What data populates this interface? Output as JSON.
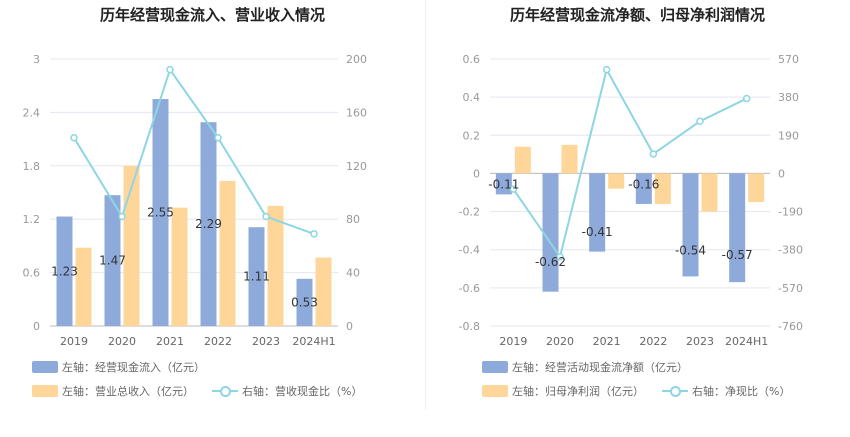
{
  "colors": {
    "bar1": "#8eaadb",
    "bar2": "#ffd699",
    "line": "#8dd6e2",
    "grid": "#e6e6f0",
    "axis": "#999999",
    "label": "#333333"
  },
  "chart_data": [
    {
      "type": "bar",
      "title": "历年经营现金流入、营业收入情况",
      "categories": [
        "2019",
        "2020",
        "2021",
        "2022",
        "2023",
        "2024H1"
      ],
      "y_left": {
        "min": 0,
        "max": 3,
        "ticks": [
          "0",
          "0.6",
          "1.2",
          "1.8",
          "2.4",
          "3"
        ]
      },
      "y_right": {
        "min": 0,
        "max": 200,
        "ticks": [
          "0",
          "40",
          "80",
          "120",
          "160",
          "200"
        ]
      },
      "series": [
        {
          "name": "左轴：经营现金流入（亿元）",
          "axis": "left",
          "kind": "bar",
          "color": "#8eaadb",
          "values": [
            1.23,
            1.47,
            2.55,
            2.29,
            1.11,
            0.53
          ],
          "labels": [
            "1.23",
            "1.47",
            "2.55",
            "2.29",
            "1.11",
            "0.53"
          ]
        },
        {
          "name": "左轴：营业总收入（亿元）",
          "axis": "left",
          "kind": "bar",
          "color": "#ffd699",
          "values": [
            0.88,
            1.8,
            1.33,
            1.63,
            1.35,
            0.77
          ]
        },
        {
          "name": "右轴：营收现金比（%）",
          "axis": "right",
          "kind": "line",
          "color": "#8dd6e2",
          "values": [
            141,
            82,
            192,
            141,
            82,
            69
          ]
        }
      ]
    },
    {
      "type": "bar",
      "title": "历年经营现金流净额、归母净利润情况",
      "categories": [
        "2019",
        "2020",
        "2021",
        "2022",
        "2023",
        "2024H1"
      ],
      "y_left": {
        "min": -0.8,
        "max": 0.6,
        "ticks": [
          "-0.8",
          "-0.6",
          "-0.4",
          "-0.2",
          "0",
          "0.2",
          "0.4",
          "0.6"
        ]
      },
      "y_right": {
        "min": -760,
        "max": 570,
        "ticks": [
          "-760",
          "-570",
          "-380",
          "-190",
          "0",
          "190",
          "380",
          "570"
        ]
      },
      "series": [
        {
          "name": "左轴：经营活动现金流净额（亿元）",
          "axis": "left",
          "kind": "bar",
          "color": "#8eaadb",
          "values": [
            -0.11,
            -0.62,
            -0.41,
            -0.16,
            -0.54,
            -0.57
          ],
          "labels": [
            "-0.11",
            "-0.62",
            "-0.41",
            "-0.16",
            "-0.54",
            "-0.57"
          ]
        },
        {
          "name": "左轴：归母净利润（亿元）",
          "axis": "left",
          "kind": "bar",
          "color": "#ffd699",
          "values": [
            0.14,
            0.15,
            -0.08,
            -0.16,
            -0.2,
            -0.15
          ]
        },
        {
          "name": "右轴：净现比（%）",
          "axis": "right",
          "kind": "line",
          "color": "#8dd6e2",
          "values": [
            -78,
            -415,
            517,
            97,
            260,
            373
          ]
        }
      ]
    }
  ]
}
